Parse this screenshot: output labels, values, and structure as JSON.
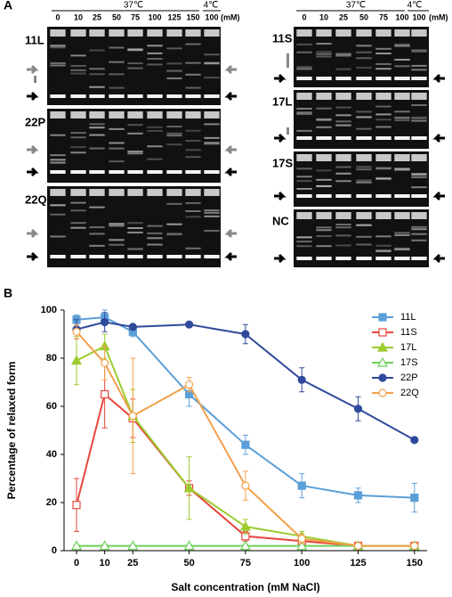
{
  "panel_a": {
    "label": "A",
    "left": {
      "temps": [
        "37℃",
        "4℃"
      ],
      "lanes": [
        "0",
        "10",
        "25",
        "50",
        "75",
        "100",
        "125",
        "150",
        "100"
      ],
      "unit": "(mM)",
      "gels": [
        "11L",
        "22P",
        "22Q"
      ]
    },
    "right": {
      "temps": [
        "37℃",
        "4℃"
      ],
      "lanes": [
        "0",
        "10",
        "25",
        "50",
        "75",
        "100",
        "100"
      ],
      "unit": "(mM)",
      "gels": [
        "11S",
        "17L",
        "17S",
        "NC"
      ]
    }
  },
  "chart_data": {
    "type": "line",
    "panel_label": "B",
    "y_label": "Percentage of relaxed form",
    "x_label": "Salt concentration (mM NaCl)",
    "categories": [
      "0",
      "10",
      "25",
      "50",
      "75",
      "100",
      "125",
      "150"
    ],
    "ylim": [
      0,
      100
    ],
    "yticks": [
      0,
      20,
      40,
      60,
      80,
      100
    ],
    "grid": false,
    "legend": "upper right",
    "series": [
      {
        "name": "11L",
        "color": "#5b9fd8",
        "marker": "square",
        "filled": true,
        "values": [
          96,
          97,
          91,
          65,
          44,
          27,
          23,
          22
        ],
        "errors": [
          2,
          3,
          2,
          5,
          4,
          5,
          3,
          6
        ]
      },
      {
        "name": "11S",
        "color": "#e8463c",
        "marker": "square",
        "filled": false,
        "values": [
          19,
          65,
          55,
          26,
          6,
          4,
          2,
          2
        ],
        "errors": [
          11,
          14,
          8,
          3,
          2,
          1,
          0.5,
          0.5
        ]
      },
      {
        "name": "17L",
        "color": "#9ccc2e",
        "marker": "triangle",
        "filled": true,
        "values": [
          79,
          85,
          56,
          26,
          10,
          6,
          2,
          2
        ],
        "errors": [
          10,
          5,
          11,
          13,
          3,
          2,
          0.5,
          0.5
        ]
      },
      {
        "name": "17S",
        "color": "#6fcf5a",
        "marker": "triangle",
        "filled": false,
        "values": [
          2,
          2,
          2,
          2,
          2,
          2,
          2,
          2
        ],
        "errors": [
          0.5,
          0.5,
          0.5,
          0.5,
          0.5,
          0.5,
          0.5,
          0.5
        ]
      },
      {
        "name": "22P",
        "color": "#2f4a9c",
        "marker": "circle",
        "filled": true,
        "values": [
          92,
          95,
          93,
          94,
          90,
          71,
          59,
          46
        ],
        "errors": [
          4,
          4,
          1,
          1,
          4,
          5,
          5,
          1
        ]
      },
      {
        "name": "22Q",
        "color": "#f3a04a",
        "marker": "circle",
        "filled": false,
        "values": [
          91,
          78,
          56,
          69,
          27,
          5,
          2,
          2
        ],
        "errors": [
          3,
          7,
          24,
          3,
          6,
          2,
          0.5,
          0.5
        ]
      }
    ]
  }
}
